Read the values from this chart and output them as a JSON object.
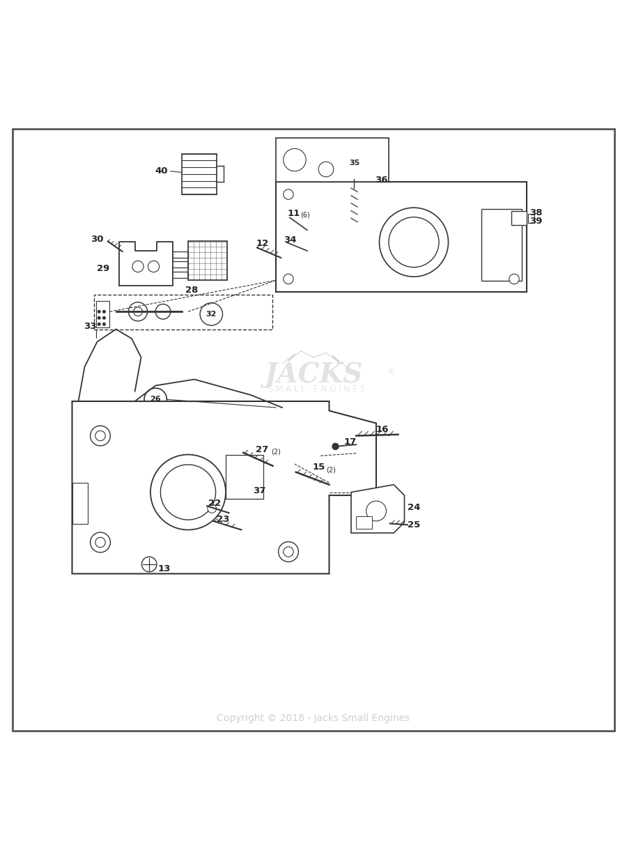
{
  "bg_color": "#ffffff",
  "border_color": "#555555",
  "line_color": "#333333",
  "text_color": "#222222",
  "copyright_text": "Copyright © 2018 - Jacks Small Engines",
  "figsize": [
    9.0,
    12.33
  ],
  "dpi": 100
}
